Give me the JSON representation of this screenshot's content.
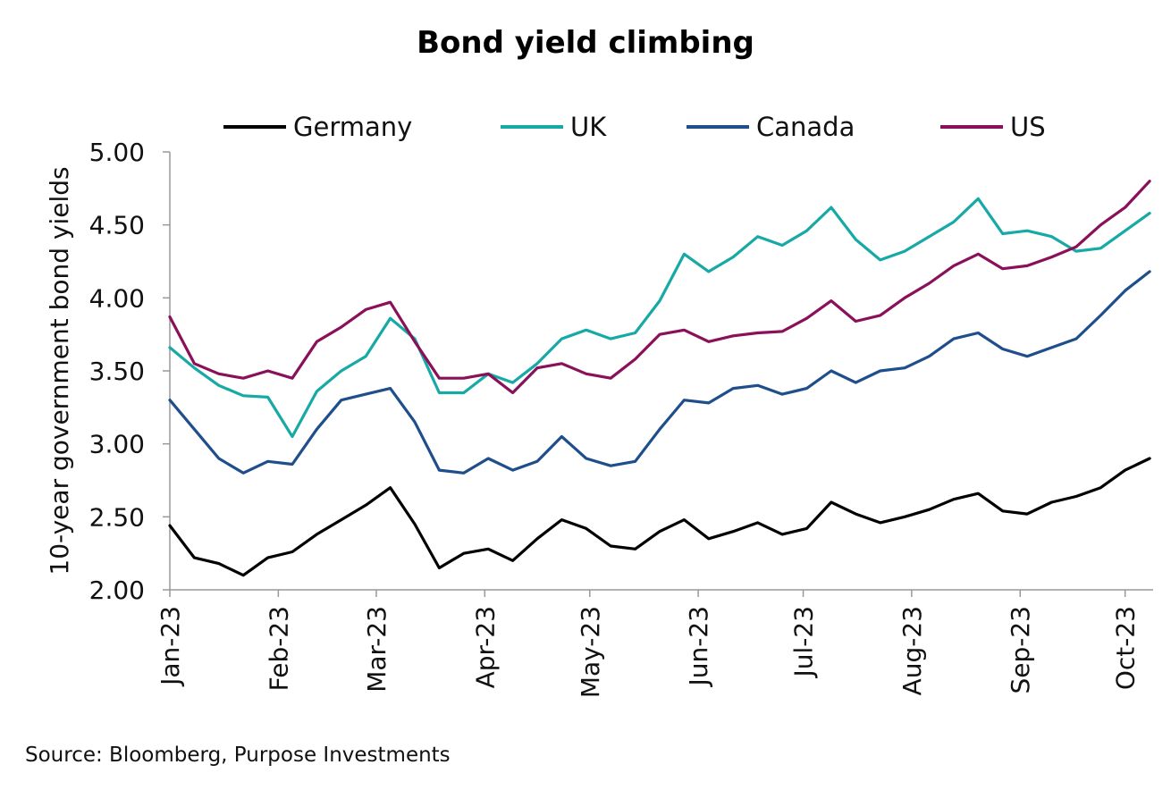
{
  "chart_data": {
    "type": "line",
    "title": "Bond yield climbing",
    "ylabel": "10-year government bond yields",
    "xlabel": "",
    "ylim": [
      2.0,
      5.0
    ],
    "yticks": [
      "2.00",
      "2.50",
      "3.00",
      "3.50",
      "4.00",
      "4.50",
      "5.00"
    ],
    "xticks": [
      "Jan-23",
      "Feb-23",
      "Mar-23",
      "Apr-23",
      "May-23",
      "Jun-23",
      "Jul-23",
      "Aug-23",
      "Sep-23",
      "Oct-23"
    ],
    "x_domain": [
      "2023-01-01",
      "2023-10-09"
    ],
    "grid": false,
    "legend": "top",
    "x": [
      "2023-01-01",
      "2023-01-08",
      "2023-01-15",
      "2023-01-22",
      "2023-01-29",
      "2023-02-05",
      "2023-02-12",
      "2023-02-19",
      "2023-02-26",
      "2023-03-05",
      "2023-03-12",
      "2023-03-19",
      "2023-03-26",
      "2023-04-02",
      "2023-04-09",
      "2023-04-16",
      "2023-04-23",
      "2023-04-30",
      "2023-05-07",
      "2023-05-14",
      "2023-05-21",
      "2023-05-28",
      "2023-06-04",
      "2023-06-11",
      "2023-06-18",
      "2023-06-25",
      "2023-07-02",
      "2023-07-09",
      "2023-07-16",
      "2023-07-23",
      "2023-07-30",
      "2023-08-06",
      "2023-08-13",
      "2023-08-20",
      "2023-08-27",
      "2023-09-03",
      "2023-09-10",
      "2023-09-17",
      "2023-09-24",
      "2023-10-01",
      "2023-10-08"
    ],
    "series": [
      {
        "name": "Germany",
        "color": "#000000",
        "values": [
          2.44,
          2.22,
          2.18,
          2.1,
          2.22,
          2.26,
          2.38,
          2.48,
          2.58,
          2.7,
          2.45,
          2.15,
          2.25,
          2.28,
          2.2,
          2.35,
          2.48,
          2.42,
          2.3,
          2.28,
          2.4,
          2.48,
          2.35,
          2.4,
          2.46,
          2.38,
          2.42,
          2.6,
          2.52,
          2.46,
          2.5,
          2.55,
          2.62,
          2.66,
          2.54,
          2.52,
          2.6,
          2.64,
          2.7,
          2.82,
          2.9
        ]
      },
      {
        "name": "UK",
        "color": "#17a9a5",
        "values": [
          3.66,
          3.52,
          3.4,
          3.33,
          3.32,
          3.05,
          3.36,
          3.5,
          3.6,
          3.86,
          3.72,
          3.35,
          3.35,
          3.48,
          3.42,
          3.55,
          3.72,
          3.78,
          3.72,
          3.76,
          3.98,
          4.3,
          4.18,
          4.28,
          4.42,
          4.36,
          4.46,
          4.62,
          4.4,
          4.26,
          4.32,
          4.42,
          4.52,
          4.68,
          4.44,
          4.46,
          4.42,
          4.32,
          4.34,
          4.46,
          4.58
        ]
      },
      {
        "name": "Canada",
        "color": "#1f4e8c",
        "values": [
          3.3,
          3.1,
          2.9,
          2.8,
          2.88,
          2.86,
          3.1,
          3.3,
          3.34,
          3.38,
          3.15,
          2.82,
          2.8,
          2.9,
          2.82,
          2.88,
          3.05,
          2.9,
          2.85,
          2.88,
          3.1,
          3.3,
          3.28,
          3.38,
          3.4,
          3.34,
          3.38,
          3.5,
          3.42,
          3.5,
          3.52,
          3.6,
          3.72,
          3.76,
          3.65,
          3.6,
          3.66,
          3.72,
          3.88,
          4.05,
          4.18
        ]
      },
      {
        "name": "US",
        "color": "#8a1059",
        "values": [
          3.87,
          3.55,
          3.48,
          3.45,
          3.5,
          3.45,
          3.7,
          3.8,
          3.92,
          3.97,
          3.7,
          3.45,
          3.45,
          3.48,
          3.35,
          3.52,
          3.55,
          3.48,
          3.45,
          3.58,
          3.75,
          3.78,
          3.7,
          3.74,
          3.76,
          3.77,
          3.86,
          3.98,
          3.84,
          3.88,
          4.0,
          4.1,
          4.22,
          4.3,
          4.2,
          4.22,
          4.28,
          4.35,
          4.5,
          4.62,
          4.8
        ]
      }
    ]
  },
  "source_note": "Source: Bloomberg, Purpose Investments"
}
